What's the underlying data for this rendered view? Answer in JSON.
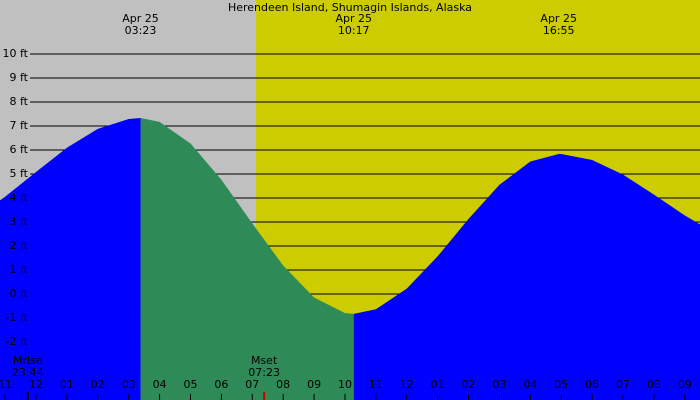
{
  "chart_data": {
    "type": "tide",
    "title": "Herendeen Island, Shumagin Islands, Alaska",
    "x": [
      -1.165,
      -1,
      0,
      1,
      2,
      3,
      3.383,
      4,
      5,
      6,
      7,
      8,
      9,
      10,
      10.283,
      11,
      12,
      13,
      14,
      15,
      16,
      16.917,
      17,
      18,
      19,
      20,
      21,
      21.49
    ],
    "values": [
      3.9,
      4.05,
      5.08,
      6.09,
      6.88,
      7.29,
      7.33,
      7.17,
      6.27,
      4.76,
      2.94,
      1.18,
      -0.15,
      -0.8,
      -0.83,
      -0.64,
      0.22,
      1.57,
      3.13,
      4.55,
      5.52,
      5.83,
      5.83,
      5.58,
      4.97,
      4.14,
      3.27,
      2.9
    ],
    "rise_color": "#0000ff",
    "fall_color": "#2e8b57",
    "night_color": "#c0c0c0",
    "day_color": "#cccc00",
    "sunrise": 7.12,
    "xlim": [
      -1.165,
      21.49
    ],
    "ylim": [
      -4.42,
      12.25
    ],
    "grid": true,
    "yticks": [
      {
        "value": -2,
        "label": "-2 ft"
      },
      {
        "value": -1,
        "label": "-1 ft"
      },
      {
        "value": 0,
        "label": "0 ft"
      },
      {
        "value": 1,
        "label": "1 ft"
      },
      {
        "value": 2,
        "label": "2 ft"
      },
      {
        "value": 3,
        "label": "3 ft"
      },
      {
        "value": 4,
        "label": "4 ft"
      },
      {
        "value": 5,
        "label": "5 ft"
      },
      {
        "value": 6,
        "label": "6 ft"
      },
      {
        "value": 7,
        "label": "7 ft"
      },
      {
        "value": 8,
        "label": "8 ft"
      },
      {
        "value": 9,
        "label": "9 ft"
      },
      {
        "value": 10,
        "label": "10 ft"
      }
    ],
    "xticks": [
      {
        "value": -1,
        "label": "11"
      },
      {
        "value": 0,
        "label": "12"
      },
      {
        "value": 1,
        "label": "01"
      },
      {
        "value": 2,
        "label": "02"
      },
      {
        "value": 3,
        "label": "03"
      },
      {
        "value": 4,
        "label": "04"
      },
      {
        "value": 5,
        "label": "05"
      },
      {
        "value": 6,
        "label": "06"
      },
      {
        "value": 7,
        "label": "07"
      },
      {
        "value": 8,
        "label": "08"
      },
      {
        "value": 9,
        "label": "09"
      },
      10,
      11,
      12,
      {
        "value": 13,
        "label": "01"
      },
      {
        "value": 14,
        "label": "02"
      },
      {
        "value": 15,
        "label": "03"
      },
      {
        "value": 16,
        "label": "04"
      },
      {
        "value": 17,
        "label": "05"
      },
      {
        "value": 18,
        "label": "06"
      },
      {
        "value": 19,
        "label": "07"
      },
      {
        "value": 20,
        "label": "08"
      },
      {
        "value": 21,
        "label": "09"
      }
    ],
    "annotations": [
      {
        "x": 3.383,
        "date": "Apr 25",
        "time": "03:23"
      },
      {
        "x": 10.283,
        "date": "Apr 25",
        "time": "10:17"
      },
      {
        "x": 16.917,
        "date": "Apr 25",
        "time": "16:55"
      }
    ],
    "moon": [
      {
        "x": -0.267,
        "label": "Mrise",
        "time": "23:44",
        "color": "#000000"
      },
      {
        "x": 7.383,
        "label": "Mset",
        "time": "07:23",
        "color": "#cc0000"
      }
    ]
  }
}
